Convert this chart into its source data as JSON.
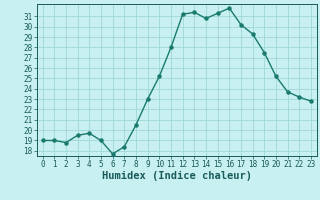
{
  "x": [
    0,
    1,
    2,
    3,
    4,
    5,
    6,
    7,
    8,
    9,
    10,
    11,
    12,
    13,
    14,
    15,
    16,
    17,
    18,
    19,
    20,
    21,
    22,
    23
  ],
  "y": [
    19,
    19,
    18.8,
    19.5,
    19.7,
    19,
    17.7,
    18.4,
    20.5,
    23,
    25.2,
    28,
    31.2,
    31.4,
    30.8,
    31.3,
    31.8,
    30.2,
    29.3,
    27.5,
    25.2,
    23.7,
    23.2,
    22.8
  ],
  "line_color": "#1a7a6e",
  "marker_color": "#1a7a6e",
  "bg_color": "#c8f0f0",
  "grid_color": "#a0d8d8",
  "xlabel": "Humidex (Indice chaleur)",
  "ylabel": "",
  "title": "",
  "ylim": [
    17.5,
    32.2
  ],
  "xlim": [
    -0.5,
    23.5
  ],
  "yticks": [
    18,
    19,
    20,
    21,
    22,
    23,
    24,
    25,
    26,
    27,
    28,
    29,
    30,
    31
  ],
  "xticks": [
    0,
    1,
    2,
    3,
    4,
    5,
    6,
    7,
    8,
    9,
    10,
    11,
    12,
    13,
    14,
    15,
    16,
    17,
    18,
    19,
    20,
    21,
    22,
    23
  ],
  "tick_fontsize": 5.5,
  "xlabel_fontsize": 7.5
}
